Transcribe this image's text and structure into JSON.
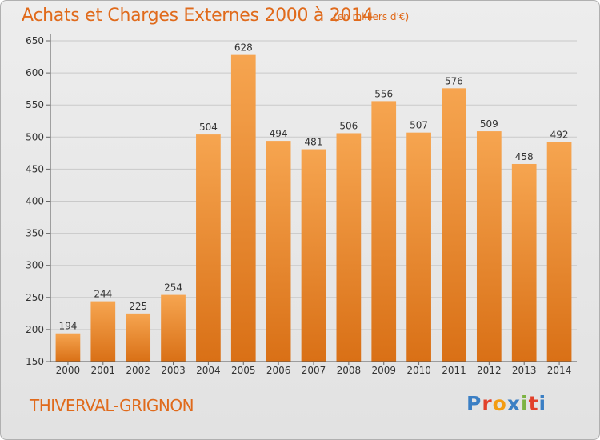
{
  "header": {
    "title": "Achats et Charges Externes 2000 à 2014",
    "subtitle": "(en milliers d'€)"
  },
  "footer": {
    "commune": "THIVERVAL-GRIGNON",
    "logo_text": "Proxiti",
    "logo_colors": [
      "#3b7fc4",
      "#e2402a",
      "#f39c12",
      "#3b7fc4",
      "#7cb342",
      "#e2402a",
      "#3b7fc4"
    ]
  },
  "colors": {
    "bar_light": "#f6a550",
    "bar_dark": "#d97016",
    "accent": "#e06a1b"
  },
  "chart_data": {
    "type": "bar",
    "categories": [
      "2000",
      "2001",
      "2002",
      "2003",
      "2004",
      "2005",
      "2006",
      "2007",
      "2008",
      "2009",
      "2010",
      "2011",
      "2012",
      "2013",
      "2014"
    ],
    "values": [
      194,
      244,
      225,
      254,
      504,
      628,
      494,
      481,
      506,
      556,
      507,
      576,
      509,
      458,
      492
    ],
    "ylim": [
      150,
      650
    ],
    "yticks": [
      150,
      200,
      250,
      300,
      350,
      400,
      450,
      500,
      550,
      600,
      650
    ],
    "grid": true,
    "data_labels": true
  }
}
